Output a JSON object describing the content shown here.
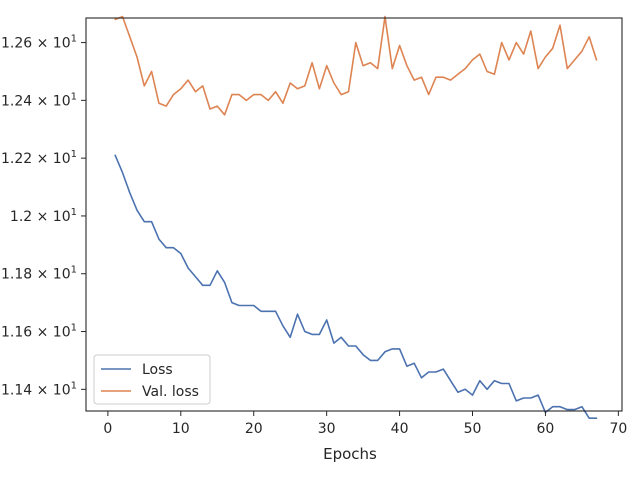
{
  "chart_data": {
    "type": "line",
    "xlabel": "Epochs",
    "ylabel": "",
    "xlim": [
      -3,
      70.5
    ],
    "ylim": [
      11.325,
      12.685
    ],
    "x_ticks": [
      0,
      10,
      20,
      30,
      40,
      50,
      60,
      70
    ],
    "x_tick_labels": [
      "0",
      "10",
      "20",
      "30",
      "40",
      "50",
      "60",
      "70"
    ],
    "y_ticks": [
      11.4,
      11.6,
      11.8,
      12.0,
      12.2,
      12.4,
      12.6
    ],
    "y_tick_labels": [
      {
        "mant": "1.14",
        "exp": "1"
      },
      {
        "mant": "1.16",
        "exp": "1"
      },
      {
        "mant": "1.18",
        "exp": "1"
      },
      {
        "mant": "1.2",
        "exp": "1"
      },
      {
        "mant": "1.22",
        "exp": "1"
      },
      {
        "mant": "1.24",
        "exp": "1"
      },
      {
        "mant": "1.26",
        "exp": "1"
      }
    ],
    "grid": false,
    "legend_position": "lower-left",
    "x": [
      1,
      2,
      3,
      4,
      5,
      6,
      7,
      8,
      9,
      10,
      11,
      12,
      13,
      14,
      15,
      16,
      17,
      18,
      19,
      20,
      21,
      22,
      23,
      24,
      25,
      26,
      27,
      28,
      29,
      30,
      31,
      32,
      33,
      34,
      35,
      36,
      37,
      38,
      39,
      40,
      41,
      42,
      43,
      44,
      45,
      46,
      47,
      48,
      49,
      50,
      51,
      52,
      53,
      54,
      55,
      56,
      57,
      58,
      59,
      60,
      61,
      62,
      63,
      64,
      65,
      66,
      67
    ],
    "series": [
      {
        "name": "Loss",
        "color": "#4c72b0",
        "values": [
          12.21,
          12.15,
          12.08,
          12.02,
          11.98,
          11.98,
          11.92,
          11.89,
          11.89,
          11.87,
          11.82,
          11.79,
          11.76,
          11.76,
          11.81,
          11.77,
          11.7,
          11.69,
          11.69,
          11.69,
          11.67,
          11.67,
          11.67,
          11.62,
          11.58,
          11.66,
          11.6,
          11.59,
          11.59,
          11.64,
          11.56,
          11.58,
          11.55,
          11.55,
          11.52,
          11.5,
          11.5,
          11.53,
          11.54,
          11.54,
          11.48,
          11.49,
          11.44,
          11.46,
          11.46,
          11.47,
          11.43,
          11.39,
          11.4,
          11.38,
          11.43,
          11.4,
          11.43,
          11.42,
          11.42,
          11.36,
          11.37,
          11.37,
          11.38,
          11.32,
          11.34,
          11.34,
          11.33,
          11.33,
          11.34,
          11.3,
          11.3
        ]
      },
      {
        "name": "Val. loss",
        "color": "#dd8452",
        "values": [
          12.68,
          12.69,
          12.62,
          12.55,
          12.45,
          12.5,
          12.39,
          12.38,
          12.42,
          12.44,
          12.47,
          12.43,
          12.45,
          12.37,
          12.38,
          12.35,
          12.42,
          12.42,
          12.4,
          12.42,
          12.42,
          12.4,
          12.43,
          12.39,
          12.46,
          12.44,
          12.45,
          12.53,
          12.44,
          12.52,
          12.46,
          12.42,
          12.43,
          12.6,
          12.52,
          12.53,
          12.51,
          12.69,
          12.51,
          12.59,
          12.52,
          12.47,
          12.48,
          12.42,
          12.48,
          12.48,
          12.47,
          12.49,
          12.51,
          12.54,
          12.56,
          12.5,
          12.49,
          12.6,
          12.54,
          12.6,
          12.56,
          12.64,
          12.51,
          12.55,
          12.58,
          12.66,
          12.51,
          12.54,
          12.57,
          12.62,
          12.54
        ]
      }
    ]
  }
}
